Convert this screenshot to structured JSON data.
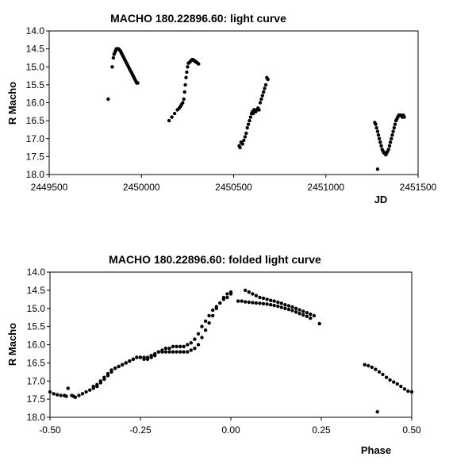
{
  "chart_data": [
    {
      "type": "scatter",
      "title": "MACHO 180.22896.60: light curve",
      "xlabel": "JD",
      "ylabel": "R Macho",
      "xlim": [
        2449500,
        2451500
      ],
      "ylim": [
        18.0,
        14.0
      ],
      "y_inverted": true,
      "grid": false,
      "marker_color": "#000000",
      "xticks": [
        "2449500",
        "2450000",
        "2450500",
        "2451000",
        "2451500"
      ],
      "yticks": [
        "14.0",
        "14.5",
        "15.0",
        "15.5",
        "16.0",
        "16.5",
        "17.0",
        "17.5",
        "18.0"
      ],
      "series": [
        {
          "x": [
            2449820,
            2449842,
            2449848,
            2449852,
            2449856,
            2449860,
            2449864,
            2449868,
            2449872,
            2449876,
            2449880,
            2449885,
            2449890,
            2449895,
            2449900,
            2449905,
            2449910,
            2449915,
            2449920,
            2449925,
            2449930,
            2449935,
            2449940,
            2449945,
            2449950,
            2449955,
            2449960,
            2449965,
            2449970,
            2449975,
            2449980,
            2450150,
            2450165,
            2450180,
            2450195,
            2450205,
            2450212,
            2450218,
            2450224,
            2450230,
            2450234,
            2450238,
            2450242,
            2450246,
            2450250,
            2450255,
            2450260,
            2450265,
            2450270,
            2450275,
            2450280,
            2450285,
            2450290,
            2450295,
            2450300,
            2450305,
            2450310,
            2450530,
            2450535,
            2450540,
            2450548,
            2450555,
            2450562,
            2450568,
            2450574,
            2450580,
            2450586,
            2450592,
            2450597,
            2450602,
            2450606,
            2450610,
            2450615,
            2450620,
            2450626,
            2450632,
            2450638,
            2450644,
            2450650,
            2450656,
            2450662,
            2450668,
            2450674,
            2450680,
            2450686,
            2451265,
            2451270,
            2451275,
            2451280,
            2451285,
            2451290,
            2451295,
            2451300,
            2451305,
            2451310,
            2451315,
            2451320,
            2451325,
            2451330,
            2451335,
            2451340,
            2451345,
            2451350,
            2451355,
            2451360,
            2451365,
            2451370,
            2451375,
            2451380,
            2451385,
            2451390,
            2451395,
            2451400,
            2451405,
            2451410,
            2451415,
            2451420,
            2451425,
            2451280
          ],
          "y": [
            15.9,
            15.0,
            14.75,
            14.65,
            14.6,
            14.55,
            14.5,
            14.5,
            14.5,
            14.5,
            14.52,
            14.55,
            14.6,
            14.65,
            14.7,
            14.75,
            14.8,
            14.85,
            14.9,
            14.95,
            15.0,
            15.05,
            15.1,
            15.15,
            15.2,
            15.25,
            15.3,
            15.35,
            15.4,
            15.45,
            15.45,
            16.5,
            16.4,
            16.3,
            16.2,
            16.15,
            16.1,
            16.05,
            16.0,
            15.9,
            15.7,
            15.5,
            15.3,
            15.15,
            15.0,
            14.9,
            14.88,
            14.85,
            14.82,
            14.8,
            14.8,
            14.82,
            14.85,
            14.85,
            14.88,
            14.9,
            14.92,
            17.2,
            17.25,
            17.1,
            17.15,
            17.05,
            16.95,
            16.85,
            16.7,
            16.6,
            16.5,
            16.4,
            16.3,
            16.25,
            16.3,
            16.2,
            16.2,
            16.25,
            16.2,
            16.15,
            16.2,
            16.0,
            15.9,
            15.8,
            15.7,
            15.6,
            15.5,
            15.3,
            15.35,
            16.55,
            16.6,
            16.7,
            16.8,
            16.9,
            17.0,
            17.1,
            17.2,
            17.3,
            17.35,
            17.4,
            17.4,
            17.45,
            17.4,
            17.35,
            17.3,
            17.2,
            17.1,
            17.0,
            16.9,
            16.8,
            16.7,
            16.6,
            16.5,
            16.45,
            16.4,
            16.35,
            16.35,
            16.35,
            16.35,
            16.4,
            16.35,
            16.4,
            17.85
          ]
        }
      ]
    },
    {
      "type": "scatter",
      "title": "MACHO 180.22896.60: folded light curve",
      "xlabel": "Phase",
      "ylabel": "R Macho",
      "xlim": [
        -0.5,
        0.5
      ],
      "ylim": [
        18.0,
        14.0
      ],
      "y_inverted": true,
      "grid": false,
      "marker_color": "#000000",
      "xticks": [
        "-0.50",
        "-0.25",
        "0.00",
        "0.25",
        "0.50"
      ],
      "yticks": [
        "14.0",
        "14.5",
        "15.0",
        "15.5",
        "16.0",
        "16.5",
        "17.0",
        "17.5",
        "18.0"
      ],
      "series": [
        {
          "x": [
            -0.5,
            -0.49,
            -0.48,
            -0.47,
            -0.46,
            -0.455,
            -0.45,
            -0.44,
            -0.435,
            -0.43,
            -0.42,
            -0.41,
            -0.4,
            -0.39,
            -0.38,
            -0.37,
            -0.36,
            -0.35,
            -0.34,
            -0.33,
            -0.32,
            -0.31,
            -0.3,
            -0.29,
            -0.28,
            -0.27,
            -0.26,
            -0.25,
            -0.24,
            -0.23,
            -0.22,
            -0.21,
            -0.2,
            -0.19,
            -0.18,
            -0.17,
            -0.16,
            -0.15,
            -0.14,
            -0.13,
            -0.12,
            -0.11,
            -0.1,
            -0.09,
            -0.08,
            -0.07,
            -0.06,
            -0.05,
            -0.04,
            -0.03,
            -0.02,
            -0.01,
            0.0,
            -0.38,
            -0.37,
            -0.36,
            -0.35,
            -0.34,
            -0.33,
            -0.32,
            -0.31,
            -0.3,
            -0.29,
            -0.28,
            -0.27,
            -0.26,
            -0.25,
            -0.24,
            -0.23,
            -0.22,
            -0.21,
            -0.2,
            -0.19,
            -0.18,
            -0.17,
            -0.16,
            -0.15,
            -0.14,
            -0.13,
            -0.12,
            -0.11,
            -0.1,
            -0.09,
            -0.08,
            -0.07,
            -0.06,
            -0.05,
            -0.04,
            -0.03,
            -0.02,
            -0.01,
            0.0,
            0.02,
            0.03,
            0.04,
            0.05,
            0.06,
            0.07,
            0.08,
            0.09,
            0.1,
            0.11,
            0.12,
            0.13,
            0.14,
            0.15,
            0.16,
            0.17,
            0.18,
            0.19,
            0.2,
            0.21,
            0.22,
            0.04,
            0.05,
            0.06,
            0.07,
            0.08,
            0.09,
            0.1,
            0.11,
            0.12,
            0.13,
            0.14,
            0.15,
            0.16,
            0.17,
            0.18,
            0.19,
            0.2,
            0.21,
            0.22,
            0.23,
            0.245,
            0.37,
            0.38,
            0.39,
            0.4,
            0.41,
            0.42,
            0.43,
            0.44,
            0.45,
            0.46,
            0.47,
            0.48,
            0.49,
            0.5,
            0.405
          ],
          "y": [
            17.3,
            17.35,
            17.38,
            17.4,
            17.4,
            17.42,
            17.2,
            17.4,
            17.42,
            17.45,
            17.4,
            17.35,
            17.3,
            17.25,
            17.15,
            17.1,
            17.0,
            16.9,
            16.8,
            16.7,
            16.65,
            16.6,
            16.55,
            16.5,
            16.45,
            16.4,
            16.35,
            16.35,
            16.35,
            16.35,
            16.3,
            16.25,
            16.2,
            16.2,
            16.2,
            16.2,
            16.2,
            16.2,
            16.2,
            16.2,
            16.2,
            16.15,
            16.1,
            16.0,
            15.8,
            15.6,
            15.4,
            15.2,
            15.0,
            14.85,
            14.7,
            14.6,
            14.55,
            17.2,
            17.15,
            17.05,
            16.95,
            16.85,
            16.75,
            16.65,
            16.6,
            16.55,
            16.5,
            16.45,
            16.4,
            16.35,
            16.35,
            16.4,
            16.4,
            16.35,
            16.3,
            16.2,
            16.15,
            16.1,
            16.1,
            16.05,
            16.05,
            16.05,
            16.05,
            16.0,
            15.95,
            15.85,
            15.7,
            15.5,
            15.35,
            15.2,
            15.05,
            14.95,
            14.85,
            14.75,
            14.7,
            14.6,
            14.8,
            14.8,
            14.82,
            14.83,
            14.84,
            14.85,
            14.86,
            14.87,
            14.88,
            14.9,
            14.92,
            14.94,
            14.97,
            15.0,
            15.03,
            15.06,
            15.1,
            15.14,
            15.18,
            15.22,
            15.27,
            14.5,
            14.55,
            14.6,
            14.65,
            14.7,
            14.72,
            14.75,
            14.78,
            14.8,
            14.83,
            14.86,
            14.9,
            14.93,
            14.96,
            15.0,
            15.04,
            15.08,
            15.12,
            15.16,
            15.2,
            15.42,
            16.55,
            16.58,
            16.62,
            16.68,
            16.75,
            16.82,
            16.9,
            16.97,
            17.03,
            17.08,
            17.15,
            17.22,
            17.28,
            17.3,
            17.85
          ]
        }
      ]
    }
  ]
}
